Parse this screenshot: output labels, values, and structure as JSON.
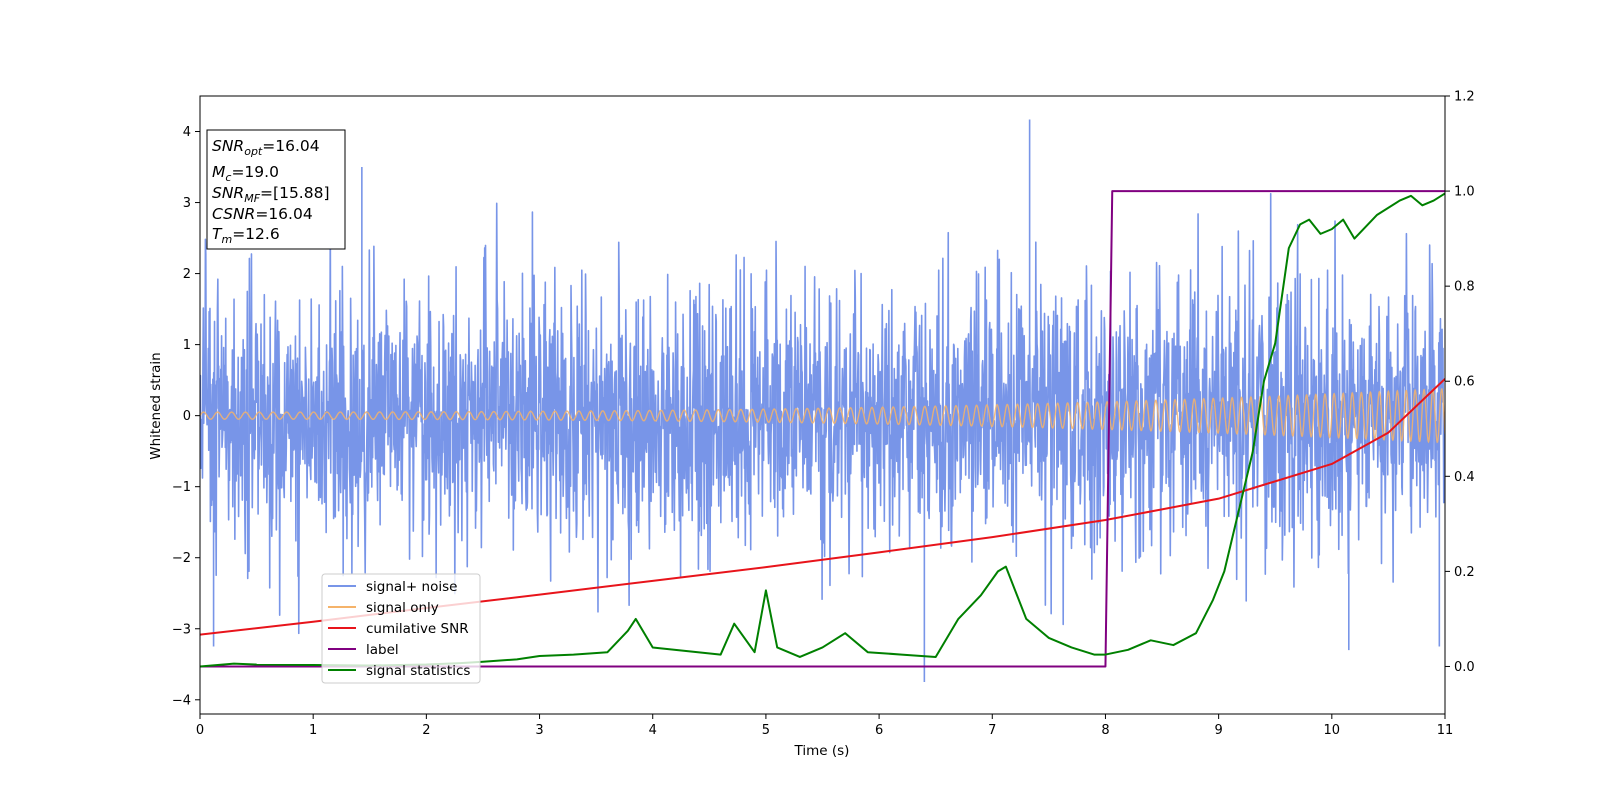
{
  "chart_data": {
    "type": "line",
    "xlabel": "Time (s)",
    "ylabel": "Whitened strain",
    "xlim": [
      0,
      11
    ],
    "ylim_left": [
      -4.2,
      4.5
    ],
    "ylim_right": [
      -0.1,
      1.2
    ],
    "x_ticks": [
      "0",
      "1",
      "2",
      "3",
      "4",
      "5",
      "6",
      "7",
      "8",
      "9",
      "10",
      "11"
    ],
    "y_ticks_left": [
      "−4",
      "−3",
      "−2",
      "−1",
      "0",
      "1",
      "2",
      "3",
      "4"
    ],
    "y_ticks_right": [
      "0.0",
      "0.2",
      "0.4",
      "0.6",
      "0.8",
      "1.0",
      "1.2"
    ],
    "grid": false,
    "legend_position": "lower-left",
    "info_box": {
      "snr_opt": {
        "name": "SNR",
        "sub": "opt",
        "value": "=16.04"
      },
      "mc": {
        "name": "M",
        "sub": "c",
        "value": "=19.0"
      },
      "snr_mf": {
        "name": "SNR",
        "sub": "MF",
        "value": "=[15.88]"
      },
      "csnr": {
        "name": "CSNR",
        "value": "=16.04"
      },
      "tm": {
        "name": "T",
        "sub": "m",
        "value": "=12.6"
      }
    },
    "series": [
      {
        "name": "signal+ noise",
        "axis": "left",
        "color": "#7895e8",
        "style": "dense noise, std approx 0.9, peaks near 4.17 at t=7.33 and -3.75 at t=6.4",
        "sigma": 0.9,
        "peaks": [
          [
            1.43,
            3.5
          ],
          [
            7.33,
            4.17
          ],
          [
            6.4,
            -3.75
          ],
          [
            0.12,
            -3.25
          ],
          [
            10.15,
            -3.3
          ],
          [
            10.95,
            -3.25
          ]
        ]
      },
      {
        "name": "signal only",
        "axis": "left",
        "color": "#f5b36a",
        "amplitude_start": 0.05,
        "amplitude_end": 0.38
      },
      {
        "name": "cumilative SNR",
        "axis": "right",
        "color": "#e8141b",
        "x": [
          0,
          1,
          2,
          3,
          4,
          5,
          6,
          7,
          8,
          9,
          10,
          10.5,
          11
        ],
        "y": [
          0.067,
          0.094,
          0.123,
          0.151,
          0.18,
          0.209,
          0.24,
          0.272,
          0.308,
          0.353,
          0.426,
          0.492,
          0.605
        ]
      },
      {
        "name": "label",
        "axis": "right",
        "color": "#800080",
        "x": [
          0,
          8.0,
          8.06,
          11
        ],
        "y": [
          0,
          0,
          1,
          1
        ]
      },
      {
        "name": "signal statistics",
        "axis": "right",
        "color": "#008000",
        "x": [
          0,
          0.3,
          0.5,
          1.0,
          1.5,
          2.0,
          2.3,
          2.5,
          2.8,
          3.0,
          3.3,
          3.6,
          3.78,
          3.85,
          4.0,
          4.2,
          4.4,
          4.6,
          4.72,
          4.9,
          5.0,
          5.1,
          5.3,
          5.5,
          5.7,
          5.9,
          6.2,
          6.5,
          6.7,
          6.9,
          7.05,
          7.12,
          7.3,
          7.5,
          7.7,
          7.9,
          8.0,
          8.2,
          8.4,
          8.6,
          8.8,
          8.95,
          9.05,
          9.2,
          9.3,
          9.4,
          9.5,
          9.62,
          9.72,
          9.8,
          9.9,
          10.0,
          10.1,
          10.2,
          10.4,
          10.6,
          10.7,
          10.8,
          10.9,
          11.0
        ],
        "y": [
          0.0,
          0.006,
          0.004,
          0.003,
          0.002,
          0.004,
          0.007,
          0.01,
          0.015,
          0.022,
          0.025,
          0.03,
          0.075,
          0.1,
          0.04,
          0.035,
          0.03,
          0.025,
          0.09,
          0.03,
          0.16,
          0.04,
          0.02,
          0.04,
          0.07,
          0.03,
          0.025,
          0.02,
          0.1,
          0.15,
          0.2,
          0.21,
          0.1,
          0.06,
          0.04,
          0.025,
          0.025,
          0.035,
          0.055,
          0.045,
          0.07,
          0.14,
          0.2,
          0.35,
          0.45,
          0.6,
          0.68,
          0.88,
          0.93,
          0.94,
          0.91,
          0.92,
          0.94,
          0.9,
          0.95,
          0.98,
          0.99,
          0.97,
          0.98,
          0.995
        ]
      }
    ]
  }
}
